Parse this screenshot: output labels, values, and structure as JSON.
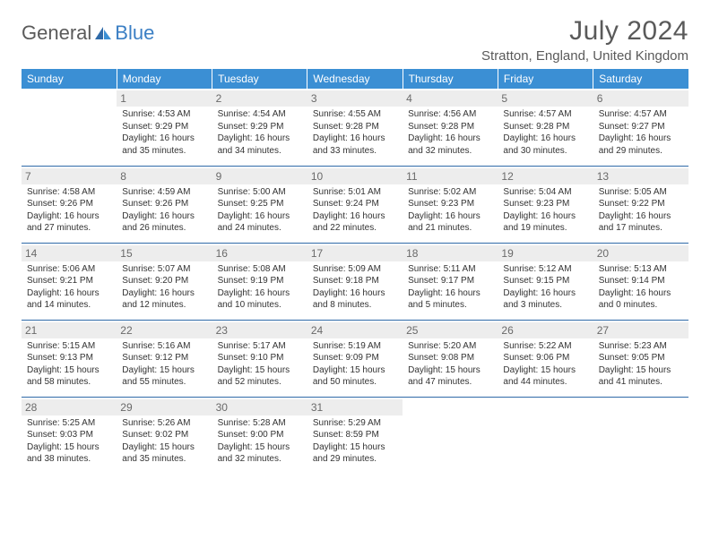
{
  "logo": {
    "general": "General",
    "blue": "Blue"
  },
  "title": "July 2024",
  "location": "Stratton, England, United Kingdom",
  "colors": {
    "header_bg": "#3b8fd4",
    "header_text": "#ffffff",
    "daynum_bg": "#ededed",
    "daynum_text": "#6a6a6a",
    "cell_text": "#333333",
    "rule": "#2f6aa8",
    "logo_gray": "#5a5a5a",
    "logo_blue": "#3b7fc4"
  },
  "weekdays": [
    "Sunday",
    "Monday",
    "Tuesday",
    "Wednesday",
    "Thursday",
    "Friday",
    "Saturday"
  ],
  "weeks": [
    [
      {
        "n": "",
        "sr": "",
        "ss": "",
        "dl": ""
      },
      {
        "n": "1",
        "sr": "Sunrise: 4:53 AM",
        "ss": "Sunset: 9:29 PM",
        "dl": "Daylight: 16 hours and 35 minutes."
      },
      {
        "n": "2",
        "sr": "Sunrise: 4:54 AM",
        "ss": "Sunset: 9:29 PM",
        "dl": "Daylight: 16 hours and 34 minutes."
      },
      {
        "n": "3",
        "sr": "Sunrise: 4:55 AM",
        "ss": "Sunset: 9:28 PM",
        "dl": "Daylight: 16 hours and 33 minutes."
      },
      {
        "n": "4",
        "sr": "Sunrise: 4:56 AM",
        "ss": "Sunset: 9:28 PM",
        "dl": "Daylight: 16 hours and 32 minutes."
      },
      {
        "n": "5",
        "sr": "Sunrise: 4:57 AM",
        "ss": "Sunset: 9:28 PM",
        "dl": "Daylight: 16 hours and 30 minutes."
      },
      {
        "n": "6",
        "sr": "Sunrise: 4:57 AM",
        "ss": "Sunset: 9:27 PM",
        "dl": "Daylight: 16 hours and 29 minutes."
      }
    ],
    [
      {
        "n": "7",
        "sr": "Sunrise: 4:58 AM",
        "ss": "Sunset: 9:26 PM",
        "dl": "Daylight: 16 hours and 27 minutes."
      },
      {
        "n": "8",
        "sr": "Sunrise: 4:59 AM",
        "ss": "Sunset: 9:26 PM",
        "dl": "Daylight: 16 hours and 26 minutes."
      },
      {
        "n": "9",
        "sr": "Sunrise: 5:00 AM",
        "ss": "Sunset: 9:25 PM",
        "dl": "Daylight: 16 hours and 24 minutes."
      },
      {
        "n": "10",
        "sr": "Sunrise: 5:01 AM",
        "ss": "Sunset: 9:24 PM",
        "dl": "Daylight: 16 hours and 22 minutes."
      },
      {
        "n": "11",
        "sr": "Sunrise: 5:02 AM",
        "ss": "Sunset: 9:23 PM",
        "dl": "Daylight: 16 hours and 21 minutes."
      },
      {
        "n": "12",
        "sr": "Sunrise: 5:04 AM",
        "ss": "Sunset: 9:23 PM",
        "dl": "Daylight: 16 hours and 19 minutes."
      },
      {
        "n": "13",
        "sr": "Sunrise: 5:05 AM",
        "ss": "Sunset: 9:22 PM",
        "dl": "Daylight: 16 hours and 17 minutes."
      }
    ],
    [
      {
        "n": "14",
        "sr": "Sunrise: 5:06 AM",
        "ss": "Sunset: 9:21 PM",
        "dl": "Daylight: 16 hours and 14 minutes."
      },
      {
        "n": "15",
        "sr": "Sunrise: 5:07 AM",
        "ss": "Sunset: 9:20 PM",
        "dl": "Daylight: 16 hours and 12 minutes."
      },
      {
        "n": "16",
        "sr": "Sunrise: 5:08 AM",
        "ss": "Sunset: 9:19 PM",
        "dl": "Daylight: 16 hours and 10 minutes."
      },
      {
        "n": "17",
        "sr": "Sunrise: 5:09 AM",
        "ss": "Sunset: 9:18 PM",
        "dl": "Daylight: 16 hours and 8 minutes."
      },
      {
        "n": "18",
        "sr": "Sunrise: 5:11 AM",
        "ss": "Sunset: 9:17 PM",
        "dl": "Daylight: 16 hours and 5 minutes."
      },
      {
        "n": "19",
        "sr": "Sunrise: 5:12 AM",
        "ss": "Sunset: 9:15 PM",
        "dl": "Daylight: 16 hours and 3 minutes."
      },
      {
        "n": "20",
        "sr": "Sunrise: 5:13 AM",
        "ss": "Sunset: 9:14 PM",
        "dl": "Daylight: 16 hours and 0 minutes."
      }
    ],
    [
      {
        "n": "21",
        "sr": "Sunrise: 5:15 AM",
        "ss": "Sunset: 9:13 PM",
        "dl": "Daylight: 15 hours and 58 minutes."
      },
      {
        "n": "22",
        "sr": "Sunrise: 5:16 AM",
        "ss": "Sunset: 9:12 PM",
        "dl": "Daylight: 15 hours and 55 minutes."
      },
      {
        "n": "23",
        "sr": "Sunrise: 5:17 AM",
        "ss": "Sunset: 9:10 PM",
        "dl": "Daylight: 15 hours and 52 minutes."
      },
      {
        "n": "24",
        "sr": "Sunrise: 5:19 AM",
        "ss": "Sunset: 9:09 PM",
        "dl": "Daylight: 15 hours and 50 minutes."
      },
      {
        "n": "25",
        "sr": "Sunrise: 5:20 AM",
        "ss": "Sunset: 9:08 PM",
        "dl": "Daylight: 15 hours and 47 minutes."
      },
      {
        "n": "26",
        "sr": "Sunrise: 5:22 AM",
        "ss": "Sunset: 9:06 PM",
        "dl": "Daylight: 15 hours and 44 minutes."
      },
      {
        "n": "27",
        "sr": "Sunrise: 5:23 AM",
        "ss": "Sunset: 9:05 PM",
        "dl": "Daylight: 15 hours and 41 minutes."
      }
    ],
    [
      {
        "n": "28",
        "sr": "Sunrise: 5:25 AM",
        "ss": "Sunset: 9:03 PM",
        "dl": "Daylight: 15 hours and 38 minutes."
      },
      {
        "n": "29",
        "sr": "Sunrise: 5:26 AM",
        "ss": "Sunset: 9:02 PM",
        "dl": "Daylight: 15 hours and 35 minutes."
      },
      {
        "n": "30",
        "sr": "Sunrise: 5:28 AM",
        "ss": "Sunset: 9:00 PM",
        "dl": "Daylight: 15 hours and 32 minutes."
      },
      {
        "n": "31",
        "sr": "Sunrise: 5:29 AM",
        "ss": "Sunset: 8:59 PM",
        "dl": "Daylight: 15 hours and 29 minutes."
      },
      {
        "n": "",
        "sr": "",
        "ss": "",
        "dl": ""
      },
      {
        "n": "",
        "sr": "",
        "ss": "",
        "dl": ""
      },
      {
        "n": "",
        "sr": "",
        "ss": "",
        "dl": ""
      }
    ]
  ]
}
